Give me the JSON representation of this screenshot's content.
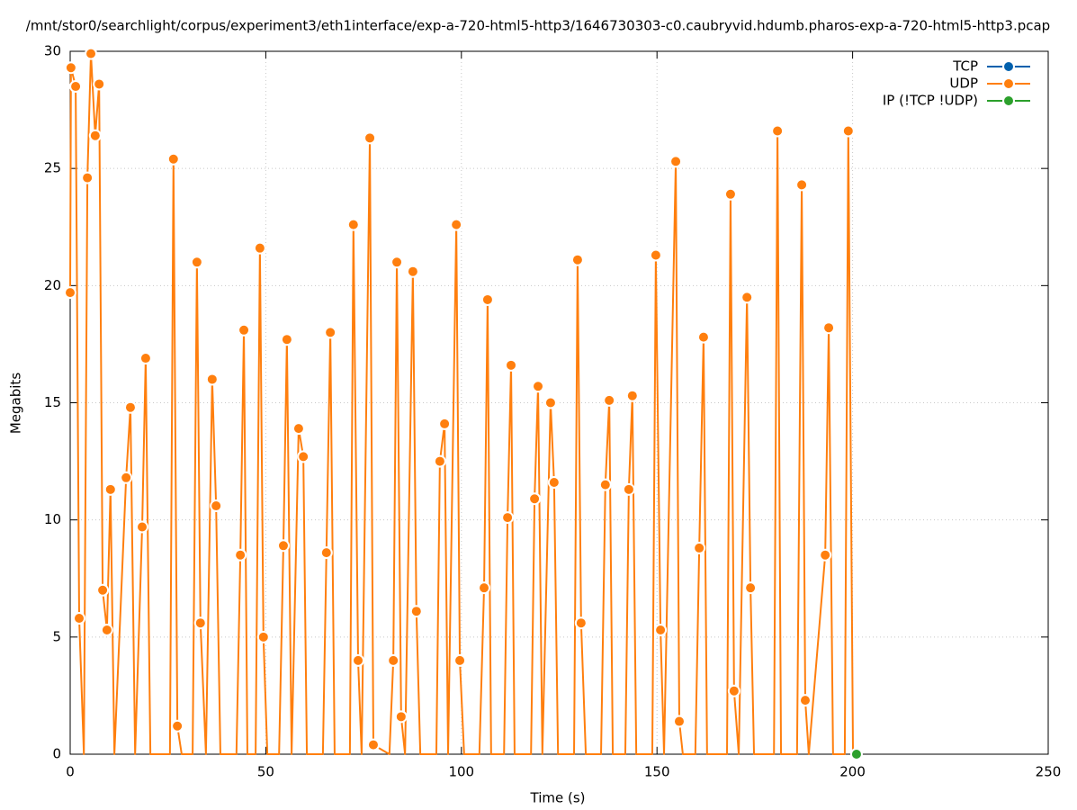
{
  "chart_data": {
    "type": "line",
    "title": "/mnt/stor0/searchlight/corpus/experiment3/eth1interface/exp-a-720-html5-http3/1646730303-c0.caubryvid.hdumb.pharos-exp-a-720-html5-http3.pcap",
    "x_label": "Time (s)",
    "y_label": "Megabits",
    "xlim": [
      0,
      250
    ],
    "ylim": [
      0,
      30
    ],
    "xticks": [
      0,
      50,
      100,
      150,
      200,
      250
    ],
    "yticks": [
      0,
      5,
      10,
      15,
      20,
      25,
      30
    ],
    "grid": true,
    "legend": "top-right",
    "series": [
      {
        "name": "TCP",
        "color": "#0060ad",
        "x": [],
        "values": []
      },
      {
        "name": "UDP",
        "color": "#ff7f0e",
        "x": [
          0,
          0.2,
          1.4,
          2.3,
          3.5,
          4.4,
          5.3,
          6.4,
          7.4,
          8.3,
          9.4,
          10.3,
          11.3,
          14.3,
          15.4,
          16.6,
          18.4,
          19.3,
          20.5,
          25.5,
          26.4,
          27.4,
          28.5,
          31.3,
          32.4,
          33.3,
          34.7,
          36.3,
          37.3,
          38.4,
          42.5,
          43.5,
          44.4,
          45.3,
          47.4,
          48.5,
          49.4,
          50.4,
          53.4,
          54.5,
          55.4,
          56.6,
          58.4,
          59.6,
          60.5,
          64.6,
          65.5,
          66.5,
          67.6,
          71.5,
          72.4,
          73.6,
          74.5,
          76.6,
          77.5,
          81.6,
          82.6,
          83.5,
          84.6,
          85.6,
          87.6,
          88.5,
          89.5,
          93.6,
          94.5,
          95.7,
          96.6,
          98.7,
          99.6,
          100.7,
          104.6,
          105.8,
          106.7,
          107.6,
          110.9,
          111.8,
          112.7,
          113.6,
          117.8,
          118.7,
          119.6,
          120.7,
          122.8,
          123.7,
          124.7,
          128.8,
          129.7,
          130.6,
          131.8,
          135.7,
          136.8,
          137.8,
          138.7,
          141.9,
          142.8,
          143.7,
          144.7,
          148.8,
          149.7,
          150.9,
          151.8,
          154.8,
          155.7,
          156.6,
          159.8,
          160.8,
          161.9,
          162.8,
          167.9,
          168.8,
          169.7,
          170.9,
          173.0,
          173.9,
          174.8,
          179.9,
          180.8,
          181.7,
          185.8,
          187.0,
          187.9,
          188.8,
          193.0,
          193.9,
          195.0,
          198.0,
          198.9,
          200.1
        ],
        "values": [
          19.7,
          29.3,
          28.5,
          5.8,
          0,
          24.6,
          29.9,
          26.4,
          28.6,
          7.0,
          5.3,
          11.3,
          0,
          11.8,
          14.8,
          0,
          9.7,
          16.9,
          0,
          0,
          25.4,
          1.2,
          0,
          0,
          21.0,
          5.6,
          0,
          16.0,
          10.6,
          0,
          0,
          8.5,
          18.1,
          0,
          0,
          21.6,
          5.0,
          0,
          0,
          8.9,
          17.7,
          0,
          13.9,
          12.7,
          0,
          0,
          8.6,
          18.0,
          0,
          0,
          22.6,
          4.0,
          0,
          26.3,
          0.4,
          0,
          4.0,
          21.0,
          1.6,
          0,
          20.6,
          6.1,
          0,
          0,
          12.5,
          14.1,
          0,
          22.6,
          4.0,
          0,
          0,
          7.1,
          19.4,
          0,
          0,
          10.1,
          16.6,
          0,
          0,
          10.9,
          15.7,
          0,
          15.0,
          11.6,
          0,
          0,
          21.1,
          5.6,
          0,
          0,
          11.5,
          15.1,
          0,
          0,
          11.3,
          15.3,
          0,
          0,
          21.3,
          5.3,
          0,
          25.3,
          1.4,
          0,
          0,
          8.8,
          17.8,
          0,
          0,
          23.9,
          2.7,
          0,
          19.5,
          7.1,
          0,
          0,
          26.6,
          0,
          0,
          24.3,
          2.3,
          0,
          8.5,
          18.2,
          0,
          0,
          26.6,
          0
        ]
      },
      {
        "name": "IP (!TCP  !UDP)",
        "color": "#2ca02c",
        "x": [
          201.0
        ],
        "values": [
          0
        ]
      }
    ]
  }
}
